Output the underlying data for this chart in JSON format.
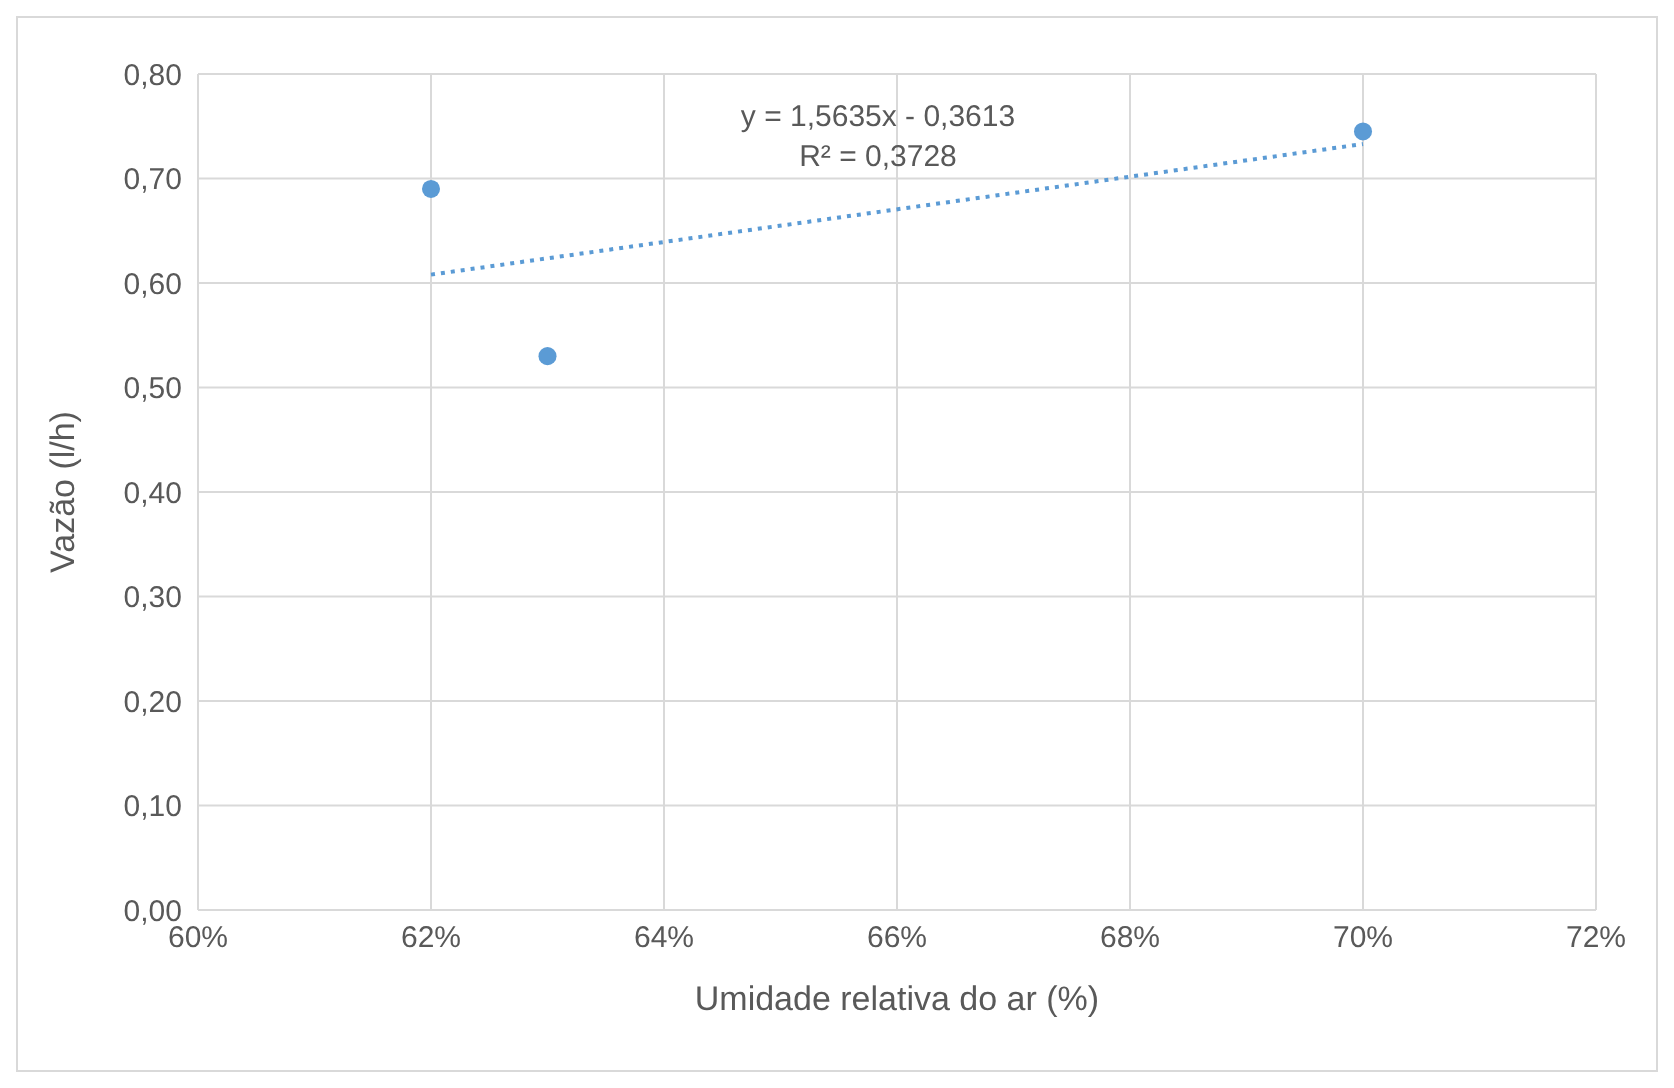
{
  "chart_data": {
    "type": "scatter",
    "xlabel": "Umidade relativa do ar (%)",
    "ylabel": "Vazão (l/h)",
    "annotations": [
      "y = 1,5635x - 0,3613",
      "R² = 0,3728"
    ],
    "series": [
      {
        "color": "#5b9bd5",
        "x": [
          62,
          63,
          70
        ],
        "values": [
          0.69,
          0.53,
          0.745
        ],
        "marker": "circle"
      },
      {
        "type": "line",
        "color": "#5b9bd5",
        "x": [
          62,
          70
        ],
        "values": [
          0.608,
          0.733
        ],
        "line_style": "dotted",
        "marker": "none"
      }
    ],
    "xlim": [
      60,
      72
    ],
    "xticks": [
      {
        "value": 60,
        "label": "60%"
      },
      {
        "value": 62,
        "label": "62%"
      },
      {
        "value": 64,
        "label": "64%"
      },
      {
        "value": 66,
        "label": "66%"
      },
      {
        "value": 68,
        "label": "68%"
      },
      {
        "value": 70,
        "label": "70%"
      },
      {
        "value": 72,
        "label": "72%"
      }
    ],
    "ylim": [
      0,
      0.8
    ],
    "yticks": [
      {
        "value": 0,
        "label": "0,00"
      },
      {
        "value": 0.1,
        "label": "0,10"
      },
      {
        "value": 0.2,
        "label": "0,20"
      },
      {
        "value": 0.3,
        "label": "0,30"
      },
      {
        "value": 0.4,
        "label": "0,40"
      },
      {
        "value": 0.5,
        "label": "0,50"
      },
      {
        "value": 0.6,
        "label": "0,60"
      },
      {
        "value": 0.7,
        "label": "0,70"
      },
      {
        "value": 0.8,
        "label": "0,80"
      }
    ],
    "grid": true,
    "legend": false
  }
}
